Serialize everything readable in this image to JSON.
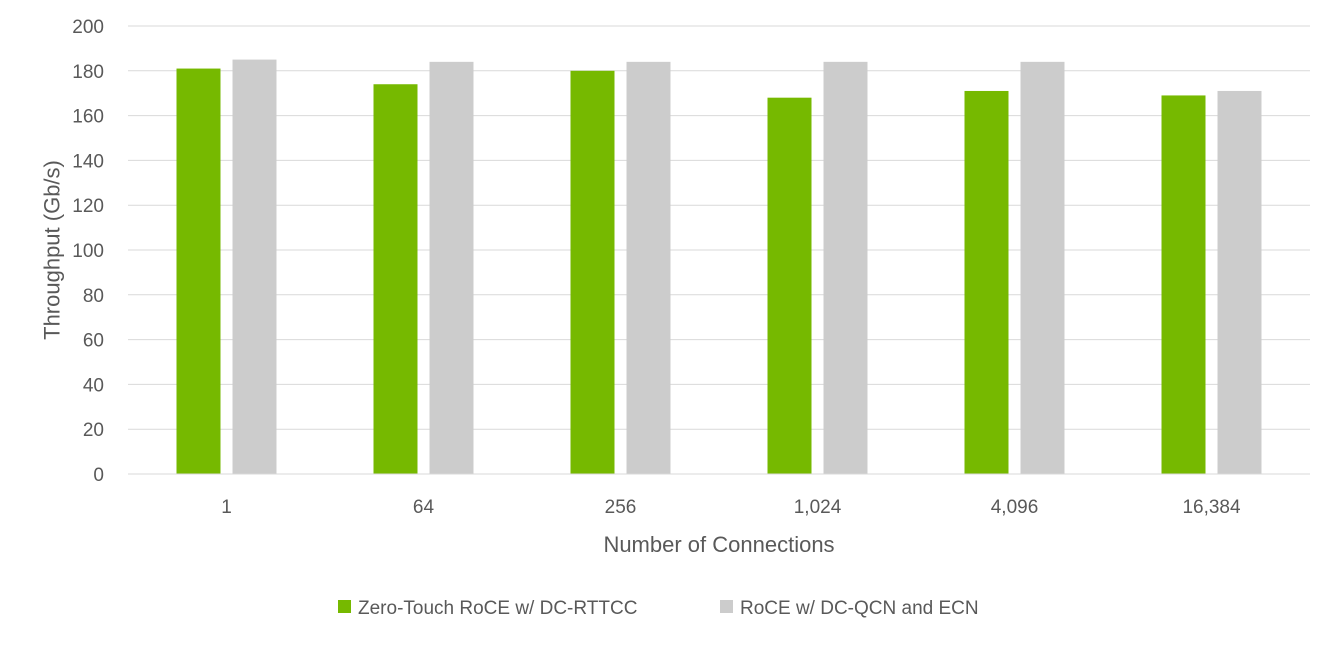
{
  "chart_data": {
    "type": "bar",
    "title": "",
    "xlabel": "Number of Connections",
    "ylabel": "Throughput  (Gb/s)",
    "categories": [
      "1",
      "64",
      "256",
      "1,024",
      "4,096",
      "16,384"
    ],
    "series": [
      {
        "name": "Zero-Touch RoCE w/ DC-RTTCC",
        "color": "#76b900",
        "values": [
          181,
          174,
          180,
          168,
          171,
          169
        ]
      },
      {
        "name": "RoCE w/ DC-QCN and ECN",
        "color": "#cccccc",
        "values": [
          185,
          184,
          184,
          184,
          184,
          171
        ]
      }
    ],
    "ylim": [
      0,
      200
    ],
    "yticks": [
      0,
      20,
      40,
      60,
      80,
      100,
      120,
      140,
      160,
      180,
      200
    ],
    "grid": true,
    "legend_position": "bottom"
  }
}
